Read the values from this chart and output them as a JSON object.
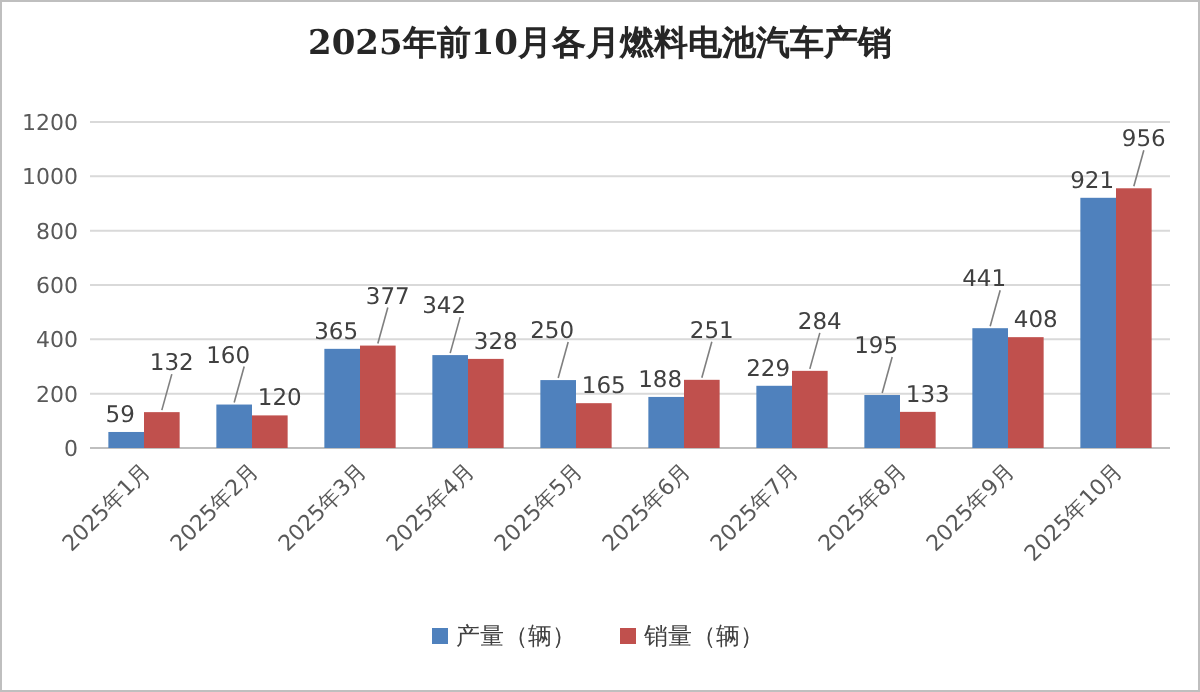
{
  "chart_data": {
    "type": "bar",
    "title": "2025年前10月各月燃料电池汽车产销",
    "categories": [
      "2025年1月",
      "2025年2月",
      "2025年3月",
      "2025年4月",
      "2025年5月",
      "2025年6月",
      "2025年7月",
      "2025年8月",
      "2025年9月",
      "2025年10月"
    ],
    "series": [
      {
        "name": "产量（辆）",
        "color": "#4f81bd",
        "values": [
          59,
          160,
          365,
          342,
          250,
          188,
          229,
          195,
          441,
          921
        ]
      },
      {
        "name": "销量（辆）",
        "color": "#c0504d",
        "values": [
          132,
          120,
          377,
          328,
          165,
          251,
          284,
          133,
          408,
          956
        ]
      }
    ],
    "ylim": [
      0,
      1200
    ],
    "yticks": [
      0,
      200,
      400,
      600,
      800,
      1000,
      1200
    ],
    "grid": "y",
    "legend": "bottom",
    "data_labels": true
  }
}
